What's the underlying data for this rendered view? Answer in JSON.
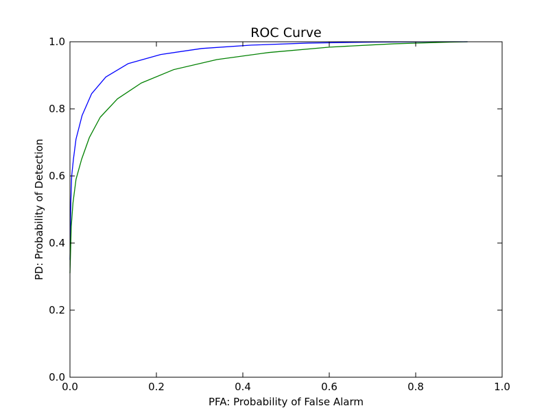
{
  "chart_data": {
    "type": "line",
    "title": "ROC Curve",
    "xlabel": "PFA: Probability of False Alarm",
    "ylabel": "PD: Probability of Detection",
    "xlim": [
      0.0,
      1.0
    ],
    "ylim": [
      0.0,
      1.0
    ],
    "xticks": [
      "0.0",
      "0.2",
      "0.4",
      "0.6",
      "0.8",
      "1.0"
    ],
    "yticks": [
      "0.0",
      "0.2",
      "0.4",
      "0.6",
      "0.8",
      "1.0"
    ],
    "grid": false,
    "legend": false,
    "series": [
      {
        "color": "#0000ff",
        "x": [
          0.0,
          0.002,
          0.004,
          0.008,
          0.014,
          0.028,
          0.05,
          0.083,
          0.135,
          0.21,
          0.305,
          0.42,
          0.55,
          0.7,
          0.85,
          0.92
        ],
        "y": [
          0.35,
          0.52,
          0.6,
          0.65,
          0.71,
          0.78,
          0.845,
          0.895,
          0.935,
          0.962,
          0.98,
          0.99,
          0.996,
          0.999,
          1.0,
          1.0
        ],
        "name": ""
      },
      {
        "color": "#008000",
        "x": [
          0.0,
          0.003,
          0.007,
          0.014,
          0.027,
          0.045,
          0.07,
          0.11,
          0.165,
          0.24,
          0.34,
          0.46,
          0.6,
          0.75,
          0.88,
          0.92
        ],
        "y": [
          0.31,
          0.45,
          0.52,
          0.59,
          0.65,
          0.715,
          0.775,
          0.83,
          0.877,
          0.917,
          0.947,
          0.968,
          0.984,
          0.994,
          0.999,
          1.0
        ],
        "name": ""
      }
    ]
  }
}
